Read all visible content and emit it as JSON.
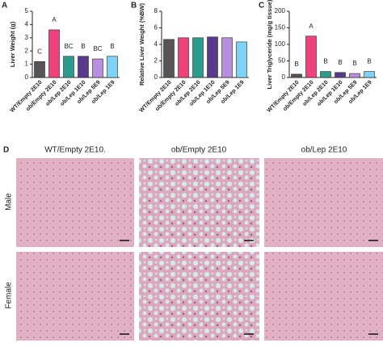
{
  "chart_data": [
    {
      "type": "bar",
      "panel": "A",
      "y_label": "Liver Weight (g)",
      "categories": [
        "WT/Empty 2E10",
        "ob/Empty 2E10",
        "ob/Lep 2E10",
        "ob/Lep 1E10",
        "ob/Lep 5E9",
        "ob/Lep 1E9"
      ],
      "colors": [
        "#555555",
        "#f0427a",
        "#2e9c8c",
        "#5a3a8c",
        "#b98de0",
        "#7dd3f5"
      ],
      "values": [
        1.2,
        3.6,
        1.6,
        1.6,
        1.4,
        1.6
      ],
      "annotations": [
        "C",
        "A",
        "BC",
        "B",
        "BC",
        "B"
      ],
      "ylim": [
        0,
        5
      ],
      "yticks": [
        0,
        1,
        2,
        3,
        4,
        5
      ]
    },
    {
      "type": "bar",
      "panel": "B",
      "y_label": "Relative Liver Weight (%BW)",
      "categories": [
        "WT/Empty 2E10",
        "ob/Empty 2E10",
        "ob/Lep 2E10",
        "ob/Lep 1E10",
        "ob/Lep 5E9",
        "ob/Lep 1E9"
      ],
      "colors": [
        "#555555",
        "#f0427a",
        "#2e9c8c",
        "#5a3a8c",
        "#b98de0",
        "#7dd3f5"
      ],
      "values": [
        4.6,
        4.8,
        4.8,
        4.9,
        4.8,
        4.3
      ],
      "ylim": [
        0,
        8
      ],
      "yticks": [
        0,
        2,
        4,
        6,
        8
      ]
    },
    {
      "type": "bar",
      "panel": "C",
      "y_label": "Liver Triglyceride (mg/g tissue)",
      "categories": [
        "WT/Empty 2E10",
        "ob/Empty 2E10",
        "ob/Lep 2E10",
        "ob/Lep 1E10",
        "ob/Lep 5E9",
        "ob/Lep 1E9"
      ],
      "colors": [
        "#555555",
        "#f0427a",
        "#2e9c8c",
        "#5a3a8c",
        "#b98de0",
        "#7dd3f5"
      ],
      "values": [
        10,
        125,
        18,
        15,
        12,
        18
      ],
      "annotations": [
        "B",
        "A",
        "B",
        "B",
        "B",
        "B"
      ],
      "ylim": [
        0,
        200
      ],
      "yticks": [
        0,
        50,
        100,
        150,
        200
      ]
    }
  ],
  "histology": {
    "panel": "D",
    "columns": [
      "WT/Empty 2E10.",
      "ob/Empty 2E10",
      "ob/Lep 2E10"
    ],
    "rows": [
      "Male",
      "Female"
    ]
  }
}
